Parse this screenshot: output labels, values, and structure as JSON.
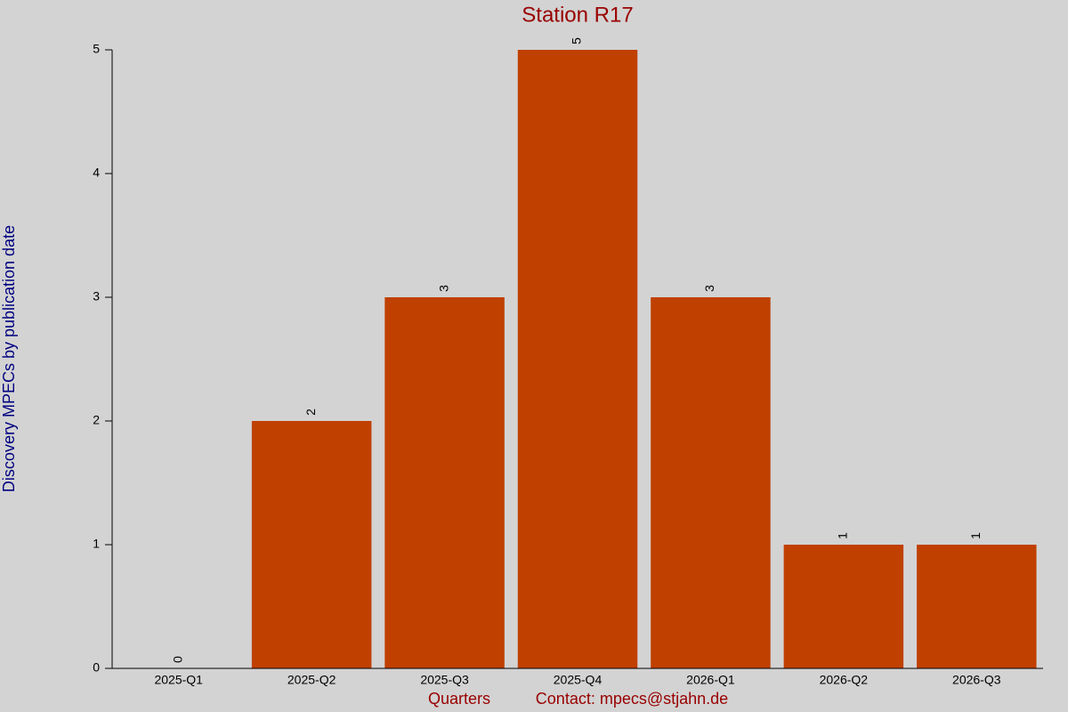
{
  "chart_data": {
    "type": "bar",
    "title": "Station R17",
    "x_label": "Quarters",
    "note": "Contact: mpecs@stjahn.de",
    "y_label": "Discovery MPECs by publication date",
    "categories": [
      "2025-Q1",
      "2025-Q2",
      "2025-Q3",
      "2025-Q4",
      "2026-Q1",
      "2026-Q2",
      "2026-Q3"
    ],
    "values": [
      0,
      2,
      3,
      5,
      3,
      1,
      1
    ],
    "color": "#c04000",
    "ylim": [
      0,
      5
    ],
    "yticks": [
      0,
      1,
      2,
      3,
      4,
      5
    ],
    "grid": false
  }
}
